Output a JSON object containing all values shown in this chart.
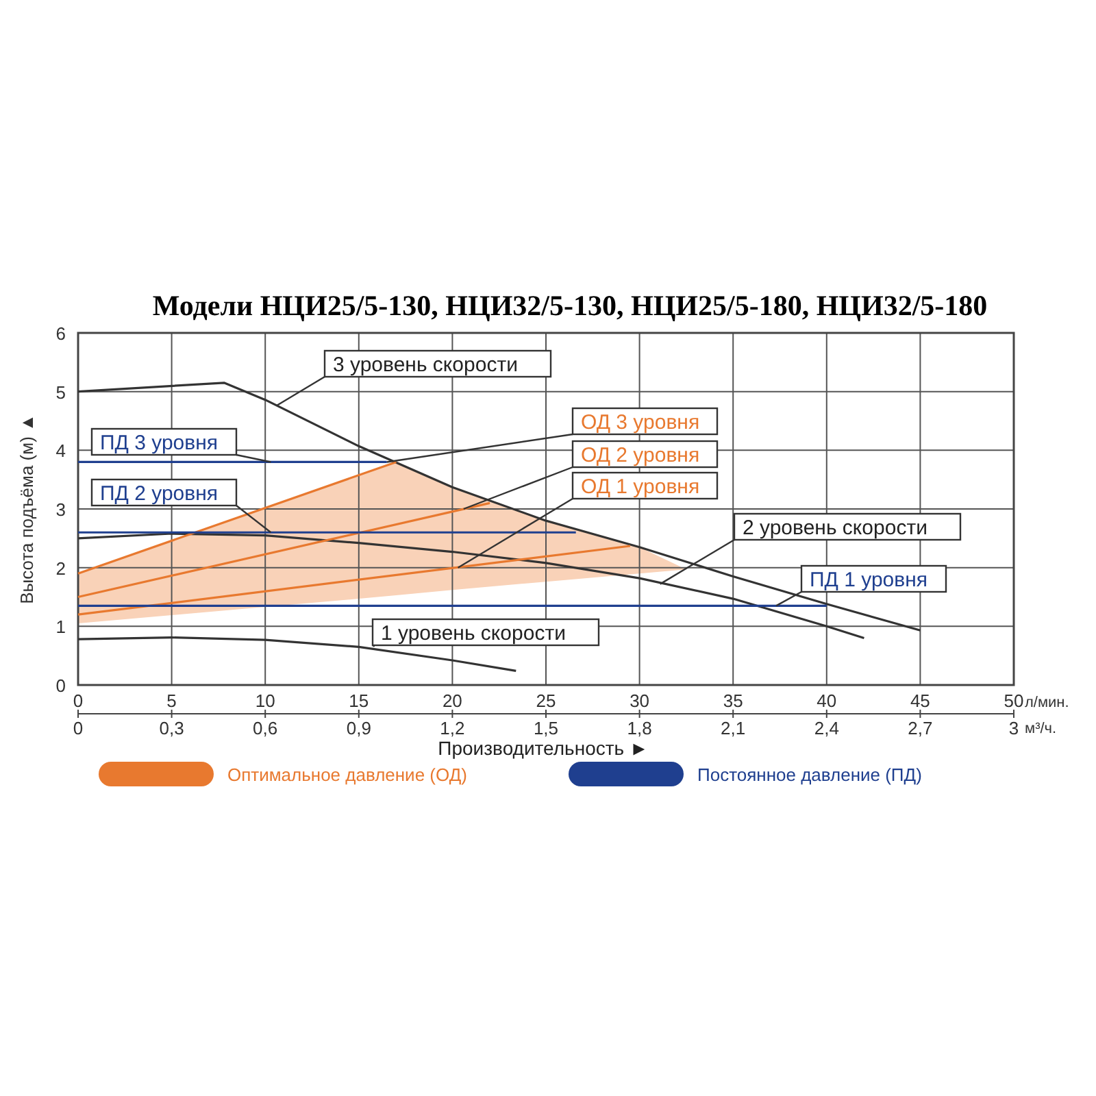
{
  "chart_data": {
    "type": "line",
    "title": "Модели НЦИ25/5-130, НЦИ32/5-130, НЦИ25/5-180, НЦИ32/5-180",
    "xlabel": "Производительность ►",
    "ylabel": "Высота подъёма (м) ▲",
    "x2label": "м³/ч.",
    "xlim": [
      0,
      50
    ],
    "xticks": [
      0,
      5,
      10,
      15,
      20,
      25,
      30,
      35,
      40,
      45,
      50
    ],
    "x2lim": [
      0,
      3
    ],
    "x2ticks": [
      0,
      {
        "value": 0.3,
        "label": "0,3"
      },
      {
        "value": 0.6,
        "label": "0,6"
      },
      {
        "value": 0.9,
        "label": "0,9"
      },
      {
        "value": 1.2,
        "label": "1,2"
      },
      {
        "value": 1.5,
        "label": "1,5"
      },
      {
        "value": 1.8,
        "label": "1,8"
      },
      {
        "value": 2.1,
        "label": "2,1"
      },
      {
        "value": 2.4,
        "label": "2,4"
      },
      {
        "value": 2.7,
        "label": "2,7"
      },
      3
    ],
    "ylim": [
      0,
      6
    ],
    "yticks": [
      0,
      1,
      2,
      3,
      4,
      5,
      6
    ],
    "grid": true,
    "legend": "bottom",
    "series": [
      {
        "color": "#f9d2b8",
        "x": [
          0,
          5,
          10,
          15,
          17,
          20,
          25,
          30,
          32.5
        ],
        "lower": [
          1.05,
          1.19,
          1.33,
          1.47,
          1.53,
          1.62,
          1.76,
          1.9,
          1.97
        ],
        "upper": [
          1.9,
          2.46,
          3.02,
          3.58,
          3.8,
          3.37,
          2.8,
          2.35,
          1.97
        ],
        "values": [
          null,
          null,
          null,
          null,
          null,
          null,
          null,
          null,
          null
        ]
      },
      {
        "color": "#333333",
        "x": [
          0,
          7.8,
          10,
          15,
          20,
          25,
          30,
          35,
          40,
          45
        ],
        "values": [
          5,
          5.15,
          4.86,
          4.07,
          3.37,
          2.8,
          2.35,
          1.85,
          1.38,
          0.93
        ]
      },
      {
        "color": "#333333",
        "x": [
          0,
          5,
          10,
          15,
          20,
          25,
          30,
          35,
          40,
          42
        ],
        "values": [
          2.5,
          2.58,
          2.55,
          2.42,
          2.27,
          2.08,
          1.82,
          1.47,
          1,
          0.8
        ]
      },
      {
        "color": "#333333",
        "x": [
          0,
          5,
          10,
          15,
          20,
          23.4
        ],
        "values": [
          0.78,
          0.81,
          0.77,
          0.65,
          0.42,
          0.24
        ]
      },
      {
        "name": "Оптимальное давление (ОД)",
        "color": "#e8792f",
        "x": [
          0,
          17
        ],
        "values": [
          1.9,
          3.8
        ]
      },
      {
        "name": "Постоянное давление (ПД)",
        "color": "#1f3f8f",
        "x": [
          0,
          16.5
        ],
        "values": [
          3.8,
          3.8
        ]
      },
      {
        "color": "#e8792f",
        "x": [
          0,
          22
        ],
        "values": [
          1.5,
          3.1
        ]
      },
      {
        "color": "#e8792f",
        "x": [
          0,
          29.5
        ],
        "values": [
          1.2,
          2.37
        ]
      },
      {
        "color": "#1f3f8f",
        "x": [
          0,
          26.6
        ],
        "values": [
          2.6,
          2.6
        ]
      },
      {
        "color": "#1f3f8f",
        "x": [
          0,
          40
        ],
        "values": [
          1.35,
          1.35
        ]
      }
    ],
    "annotations": [
      {
        "text": "3 уровень скорости",
        "x": 10.6,
        "y": 4.76
      },
      {
        "text": "ПД 3 уровня",
        "x": 10.3,
        "y": 3.8
      },
      {
        "text": "ПД 2 уровня",
        "x": 10.3,
        "y": 2.6
      },
      {
        "text": "ОД 3 уровня",
        "x": 16.5,
        "y": 3.8
      },
      {
        "text": "ОД 2 уровня",
        "x": 20.6,
        "y": 3.0
      },
      {
        "text": "ОД 1 уровня",
        "x": 20.3,
        "y": 2.0
      },
      {
        "text": "2 уровень скорости",
        "x": 31.1,
        "y": 1.72
      },
      {
        "text": "ПД 1 уровня",
        "x": 37.3,
        "y": 1.35
      },
      {
        "text": "1 уровень скорости",
        "x": 15.8,
        "y": 0.65
      },
      "л/мин."
    ]
  }
}
